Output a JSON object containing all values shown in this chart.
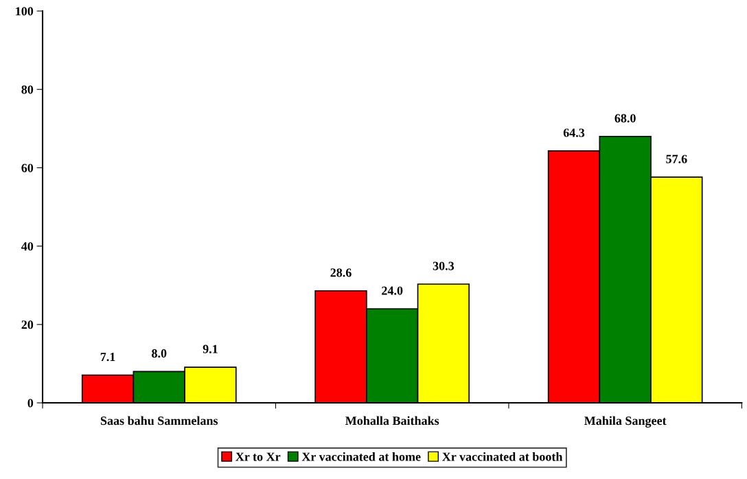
{
  "chart_data": {
    "type": "bar",
    "categories": [
      "Saas bahu Sammelans",
      "Mohalla Baithaks",
      "Mahila Sangeet"
    ],
    "series": [
      {
        "name": "Xr to Xr",
        "color": "#ff0000",
        "values": [
          7.1,
          28.6,
          64.3
        ]
      },
      {
        "name": "Xr vaccinated at home",
        "color": "#008000",
        "values": [
          8.0,
          24.0,
          68.0
        ]
      },
      {
        "name": "Xr vaccinated at booth",
        "color": "#ffff00",
        "values": [
          9.1,
          30.3,
          57.6
        ]
      }
    ],
    "ylim": [
      0,
      100
    ],
    "yticks": [
      0,
      20,
      40,
      60,
      80,
      100
    ],
    "grid": false,
    "legend": "bottom",
    "value_labels": [
      [
        "7.1",
        "28.6",
        "64.3"
      ],
      [
        "8.0",
        "24.0",
        "68.0"
      ],
      [
        "9.1",
        "30.3",
        "57.6"
      ]
    ]
  }
}
